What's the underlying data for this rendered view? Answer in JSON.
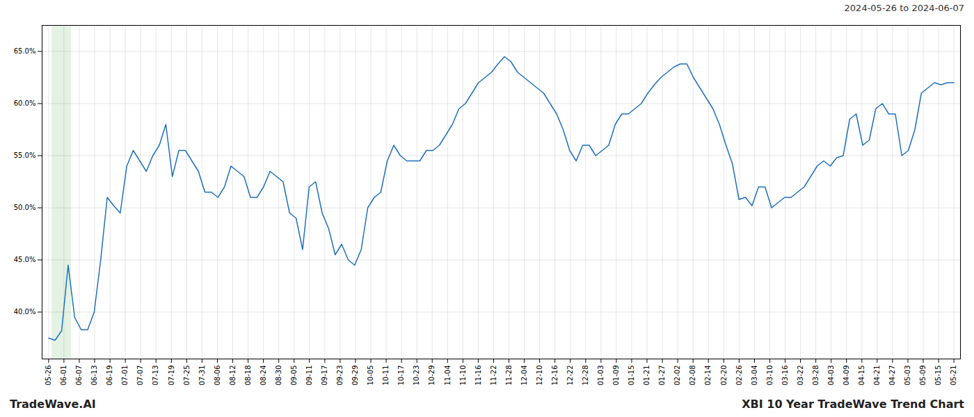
{
  "chart_data": {
    "type": "line",
    "title": "2024-05-26 to 2024-06-07",
    "annotations": [
      "TradeWave.AI",
      "XBI 10 Year TradeWave Trend Chart"
    ],
    "color": "#1f6fbd",
    "grid": true,
    "highlight": {
      "from": 1,
      "to": 3,
      "color": "#c8e6c8"
    },
    "xlim": [
      -1,
      140
    ],
    "xticks": [
      {
        "value": 0,
        "label": "05-26"
      },
      {
        "value": 2.356,
        "label": "06-01"
      },
      {
        "value": 4.712,
        "label": "06-07"
      },
      {
        "value": 7.068,
        "label": "06-13"
      },
      {
        "value": 9.424,
        "label": "06-19"
      },
      {
        "value": 11.78,
        "label": "07-01"
      },
      {
        "value": 14.136,
        "label": "07-07"
      },
      {
        "value": 16.492,
        "label": "07-13"
      },
      {
        "value": 18.847,
        "label": "07-19"
      },
      {
        "value": 21.203,
        "label": "07-25"
      },
      {
        "value": 23.559,
        "label": "07-31"
      },
      {
        "value": 25.915,
        "label": "08-06"
      },
      {
        "value": 28.271,
        "label": "08-12"
      },
      {
        "value": 30.627,
        "label": "08-18"
      },
      {
        "value": 32.983,
        "label": "08-24"
      },
      {
        "value": 35.339,
        "label": "08-30"
      },
      {
        "value": 37.695,
        "label": "09-05"
      },
      {
        "value": 40.051,
        "label": "09-11"
      },
      {
        "value": 42.407,
        "label": "09-17"
      },
      {
        "value": 44.763,
        "label": "09-23"
      },
      {
        "value": 47.119,
        "label": "09-29"
      },
      {
        "value": 49.475,
        "label": "10-05"
      },
      {
        "value": 51.831,
        "label": "10-11"
      },
      {
        "value": 54.186,
        "label": "10-17"
      },
      {
        "value": 56.542,
        "label": "10-23"
      },
      {
        "value": 58.898,
        "label": "10-29"
      },
      {
        "value": 61.254,
        "label": "11-04"
      },
      {
        "value": 63.61,
        "label": "11-10"
      },
      {
        "value": 65.966,
        "label": "11-16"
      },
      {
        "value": 68.322,
        "label": "11-22"
      },
      {
        "value": 70.678,
        "label": "11-28"
      },
      {
        "value": 73.034,
        "label": "12-04"
      },
      {
        "value": 75.39,
        "label": "12-10"
      },
      {
        "value": 77.746,
        "label": "12-16"
      },
      {
        "value": 80.102,
        "label": "12-22"
      },
      {
        "value": 82.458,
        "label": "12-28"
      },
      {
        "value": 84.814,
        "label": "01-03"
      },
      {
        "value": 87.169,
        "label": "01-09"
      },
      {
        "value": 89.525,
        "label": "01-15"
      },
      {
        "value": 91.881,
        "label": "01-21"
      },
      {
        "value": 94.237,
        "label": "01-27"
      },
      {
        "value": 96.593,
        "label": "02-02"
      },
      {
        "value": 98.949,
        "label": "02-08"
      },
      {
        "value": 101.305,
        "label": "02-14"
      },
      {
        "value": 103.661,
        "label": "02-20"
      },
      {
        "value": 106.017,
        "label": "02-26"
      },
      {
        "value": 108.373,
        "label": "03-04"
      },
      {
        "value": 110.729,
        "label": "03-10"
      },
      {
        "value": 113.085,
        "label": "03-16"
      },
      {
        "value": 115.441,
        "label": "03-22"
      },
      {
        "value": 117.797,
        "label": "03-28"
      },
      {
        "value": 120.153,
        "label": "04-03"
      },
      {
        "value": 122.508,
        "label": "04-09"
      },
      {
        "value": 124.864,
        "label": "04-15"
      },
      {
        "value": 127.22,
        "label": "04-21"
      },
      {
        "value": 129.576,
        "label": "04-27"
      },
      {
        "value": 131.932,
        "label": "05-03"
      },
      {
        "value": 134.288,
        "label": "05-09"
      },
      {
        "value": 136.644,
        "label": "05-15"
      },
      {
        "value": 139,
        "label": "05-21"
      }
    ],
    "ylim": [
      0.355,
      0.675
    ],
    "yticks": [
      {
        "value": 0.4,
        "label": "40.0%"
      },
      {
        "value": 0.45,
        "label": "45.0%"
      },
      {
        "value": 0.5,
        "label": "50.0%"
      },
      {
        "value": 0.55,
        "label": "55.0%"
      },
      {
        "value": 0.6,
        "label": "60.0%"
      },
      {
        "value": 0.65,
        "label": "65.0%"
      }
    ],
    "values": [
      0.375,
      0.373,
      0.382,
      0.445,
      0.395,
      0.383,
      0.383,
      0.4,
      0.45,
      0.51,
      0.502,
      0.495,
      0.54,
      0.555,
      0.545,
      0.535,
      0.55,
      0.56,
      0.58,
      0.53,
      0.555,
      0.555,
      0.545,
      0.535,
      0.515,
      0.515,
      0.51,
      0.52,
      0.54,
      0.535,
      0.53,
      0.51,
      0.51,
      0.52,
      0.535,
      0.53,
      0.525,
      0.495,
      0.49,
      0.46,
      0.52,
      0.525,
      0.495,
      0.48,
      0.455,
      0.465,
      0.45,
      0.445,
      0.46,
      0.5,
      0.51,
      0.515,
      0.545,
      0.56,
      0.55,
      0.545,
      0.545,
      0.545,
      0.555,
      0.555,
      0.56,
      0.57,
      0.58,
      0.595,
      0.6,
      0.61,
      0.62,
      0.625,
      0.63,
      0.638,
      0.645,
      0.64,
      0.63,
      0.625,
      0.62,
      0.615,
      0.61,
      0.6,
      0.59,
      0.575,
      0.555,
      0.545,
      0.56,
      0.56,
      0.55,
      0.555,
      0.56,
      0.58,
      0.59,
      0.59,
      0.595,
      0.6,
      0.61,
      0.618,
      0.625,
      0.63,
      0.635,
      0.638,
      0.638,
      0.625,
      0.615,
      0.605,
      0.595,
      0.58,
      0.56,
      0.542,
      0.508,
      0.51,
      0.502,
      0.52,
      0.52,
      0.5,
      0.505,
      0.51,
      0.51,
      0.515,
      0.52,
      0.53,
      0.54,
      0.545,
      0.54,
      0.548,
      0.55,
      0.585,
      0.59,
      0.56,
      0.565,
      0.595,
      0.6,
      0.59,
      0.59,
      0.55,
      0.555,
      0.575,
      0.61,
      0.615,
      0.62,
      0.618,
      0.62,
      0.62
    ]
  }
}
